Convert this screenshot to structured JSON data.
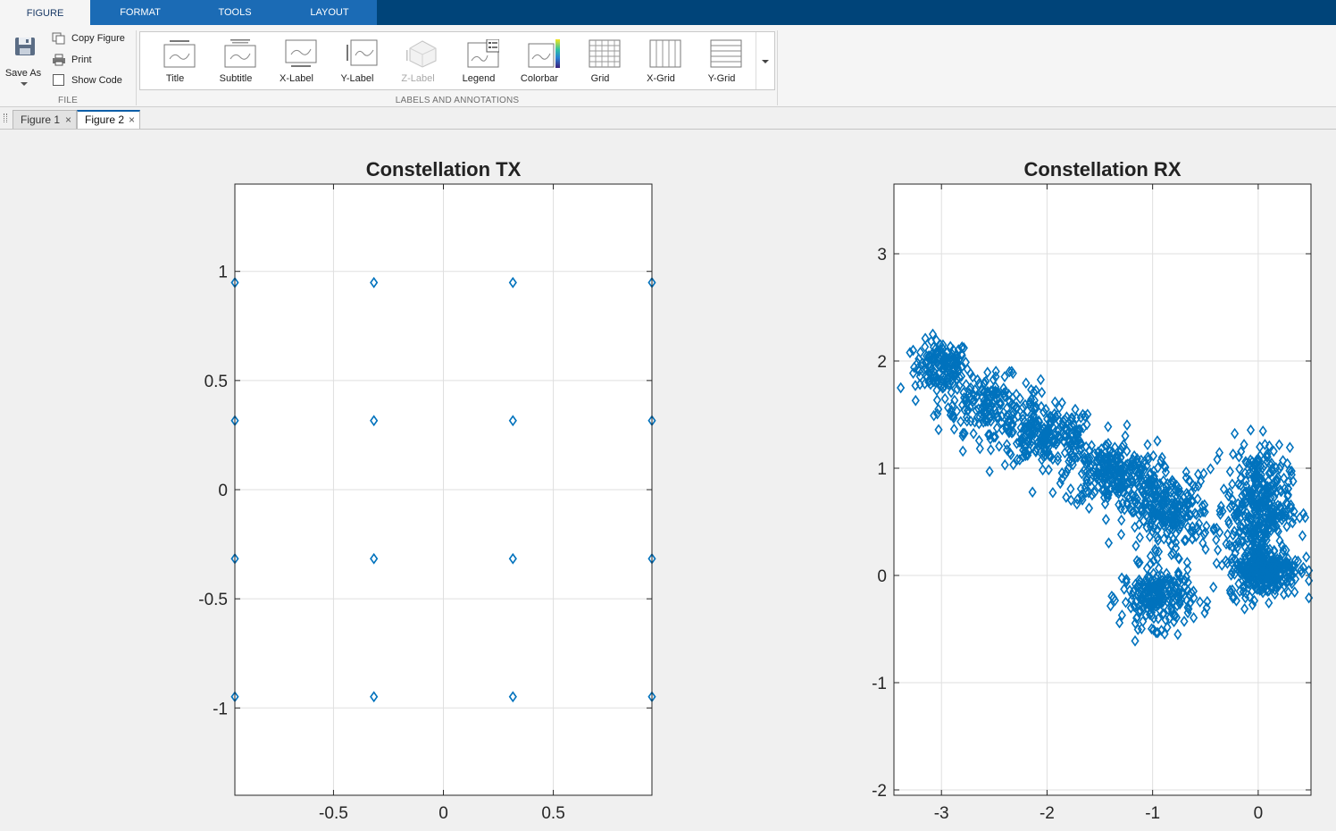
{
  "ribbon_tabs": [
    {
      "label": "FIGURE",
      "active": true
    },
    {
      "label": "FORMAT",
      "active": false
    },
    {
      "label": "TOOLS",
      "active": false
    },
    {
      "label": "LAYOUT",
      "active": false
    }
  ],
  "file_group": {
    "save_as": "Save As",
    "copy_figure": "Copy Figure",
    "print": "Print",
    "show_code": "Show Code",
    "show_code_checked": false,
    "label": "FILE"
  },
  "annotations_group": {
    "label": "LABELS AND ANNOTATIONS",
    "buttons": [
      {
        "label": "Title",
        "icon": "title-icon",
        "enabled": true
      },
      {
        "label": "Subtitle",
        "icon": "subtitle-icon",
        "enabled": true
      },
      {
        "label": "X-Label",
        "icon": "x-label-icon",
        "enabled": true
      },
      {
        "label": "Y-Label",
        "icon": "y-label-icon",
        "enabled": true
      },
      {
        "label": "Z-Label",
        "icon": "z-label-icon",
        "enabled": false
      },
      {
        "label": "Legend",
        "icon": "legend-icon",
        "enabled": true
      },
      {
        "label": "Colorbar",
        "icon": "colorbar-icon",
        "enabled": true
      },
      {
        "label": "Grid",
        "icon": "grid-icon",
        "enabled": true
      },
      {
        "label": "X-Grid",
        "icon": "x-grid-icon",
        "enabled": true
      },
      {
        "label": "Y-Grid",
        "icon": "y-grid-icon",
        "enabled": true
      }
    ]
  },
  "document_tabs": [
    {
      "label": "Figure 1",
      "active": false
    },
    {
      "label": "Figure 2",
      "active": true
    }
  ],
  "colors": {
    "marker": "#0072bd",
    "ribbon_bar": "#004479",
    "ribbon_band": "#1b6bb5"
  },
  "chart_data": [
    {
      "type": "scatter",
      "title": "Constellation TX",
      "marker": "diamond",
      "grid": true,
      "xlim": [
        -0.9487,
        0.9487
      ],
      "ylim": [
        -1.4,
        1.4
      ],
      "xticks": [
        -0.5,
        0,
        0.5
      ],
      "xtick_labels": [
        "-0.5",
        "0",
        "0.5"
      ],
      "yticks": [
        -1,
        -0.5,
        0,
        0.5,
        1
      ],
      "ytick_labels": [
        "-1",
        "-0.5",
        "0",
        "0.5",
        "1"
      ],
      "points": {
        "x_levels": [
          -0.9487,
          -0.3162,
          0.3162,
          0.9487
        ],
        "y_levels": [
          -0.9487,
          -0.3162,
          0.3162,
          0.9487
        ]
      }
    },
    {
      "type": "scatter",
      "title": "Constellation RX",
      "marker": "diamond",
      "grid": true,
      "xlim": [
        -3.45,
        0.5
      ],
      "ylim": [
        -2.05,
        3.65
      ],
      "xticks": [
        -3,
        -2,
        -1,
        0
      ],
      "xtick_labels": [
        "-3",
        "-2",
        "-1",
        "0"
      ],
      "yticks": [
        -2,
        -1,
        0,
        1,
        2,
        3
      ],
      "ytick_labels": [
        "-2",
        "-1",
        "0",
        "1",
        "2",
        "3"
      ],
      "clusters": [
        {
          "cx": -3.0,
          "cy": 1.95,
          "sx": 0.13,
          "sy": 0.12,
          "n": 150
        },
        {
          "cx": -2.55,
          "cy": 1.6,
          "sx": 0.24,
          "sy": 0.13,
          "n": 180
        },
        {
          "cx": -2.0,
          "cy": 1.3,
          "sx": 0.24,
          "sy": 0.13,
          "n": 230
        },
        {
          "cx": -1.4,
          "cy": 0.95,
          "sx": 0.22,
          "sy": 0.15,
          "n": 260
        },
        {
          "cx": -0.85,
          "cy": 0.6,
          "sx": 0.2,
          "sy": 0.17,
          "n": 260
        },
        {
          "cx": -0.95,
          "cy": -0.2,
          "sx": 0.17,
          "sy": 0.14,
          "n": 240
        },
        {
          "cx": 0.0,
          "cy": 0.65,
          "sx": 0.15,
          "sy": 0.27,
          "n": 360
        },
        {
          "cx": 0.05,
          "cy": 0.05,
          "sx": 0.17,
          "sy": 0.12,
          "n": 300
        }
      ]
    }
  ]
}
